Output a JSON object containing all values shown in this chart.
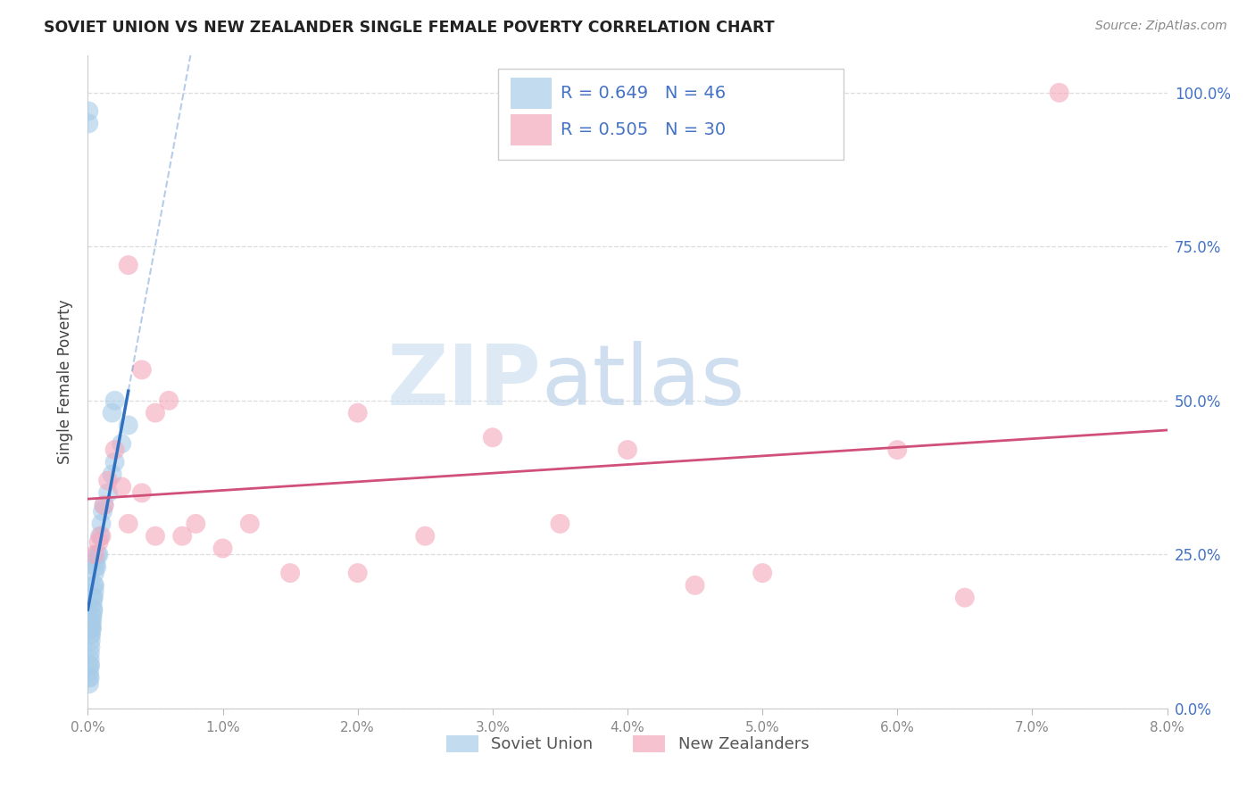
{
  "title": "SOVIET UNION VS NEW ZEALANDER SINGLE FEMALE POVERTY CORRELATION CHART",
  "source": "Source: ZipAtlas.com",
  "ylabel": "Single Female Poverty",
  "legend_blue_r": "R = 0.649",
  "legend_blue_n": "N = 46",
  "legend_pink_r": "R = 0.505",
  "legend_pink_n": "N = 30",
  "legend_label1": "Soviet Union",
  "legend_label2": "New Zealanders",
  "blue_color": "#a8cce8",
  "pink_color": "#f4a8bc",
  "blue_line_color": "#3070c0",
  "pink_line_color": "#d0507a",
  "blue_r_color": "#4472c4",
  "pink_r_color": "#4472c4",
  "blue_n_color": "#4472c4",
  "pink_n_color": "#4472c4",
  "right_axis_color": "#4472c4",
  "watermark_zip_color": "#d8eaf8",
  "watermark_atlas_color": "#c8d8e8",
  "xlim_max": 0.08,
  "ylim_max": 1.06,
  "blue_x": [
    8e-05,
    0.0001,
    0.00012,
    0.00014,
    0.00015,
    0.00015,
    0.00016,
    0.00018,
    0.0002,
    0.0002,
    0.00022,
    0.00022,
    0.00025,
    0.00025,
    0.00028,
    0.0003,
    0.0003,
    0.00032,
    0.00035,
    0.00035,
    0.00038,
    0.0004,
    0.0004,
    0.00042,
    0.00045,
    0.00048,
    0.0005,
    0.0005,
    0.00055,
    0.0006,
    0.00065,
    0.0007,
    0.0008,
    0.0009,
    0.001,
    0.0011,
    0.0012,
    0.0015,
    0.0018,
    0.002,
    0.0025,
    0.003,
    6e-05,
    6e-05,
    0.002,
    0.0018
  ],
  "blue_y": [
    0.05,
    0.04,
    0.06,
    0.07,
    0.05,
    0.08,
    0.09,
    0.07,
    0.1,
    0.12,
    0.11,
    0.13,
    0.12,
    0.14,
    0.13,
    0.13,
    0.15,
    0.14,
    0.15,
    0.17,
    0.16,
    0.16,
    0.18,
    0.18,
    0.2,
    0.19,
    0.2,
    0.22,
    0.23,
    0.24,
    0.23,
    0.25,
    0.25,
    0.28,
    0.3,
    0.32,
    0.33,
    0.35,
    0.38,
    0.4,
    0.43,
    0.46,
    0.97,
    0.95,
    0.5,
    0.48
  ],
  "pink_x": [
    0.0005,
    0.0008,
    0.001,
    0.0012,
    0.0015,
    0.002,
    0.0025,
    0.003,
    0.004,
    0.005,
    0.007,
    0.008,
    0.01,
    0.012,
    0.015,
    0.02,
    0.02,
    0.025,
    0.03,
    0.035,
    0.04,
    0.045,
    0.05,
    0.06,
    0.065,
    0.003,
    0.004,
    0.005,
    0.006,
    0.072
  ],
  "pink_y": [
    0.25,
    0.27,
    0.28,
    0.33,
    0.37,
    0.42,
    0.36,
    0.3,
    0.35,
    0.28,
    0.28,
    0.3,
    0.26,
    0.3,
    0.22,
    0.48,
    0.22,
    0.28,
    0.44,
    0.3,
    0.42,
    0.2,
    0.22,
    0.42,
    0.18,
    0.72,
    0.55,
    0.48,
    0.5,
    1.0
  ]
}
